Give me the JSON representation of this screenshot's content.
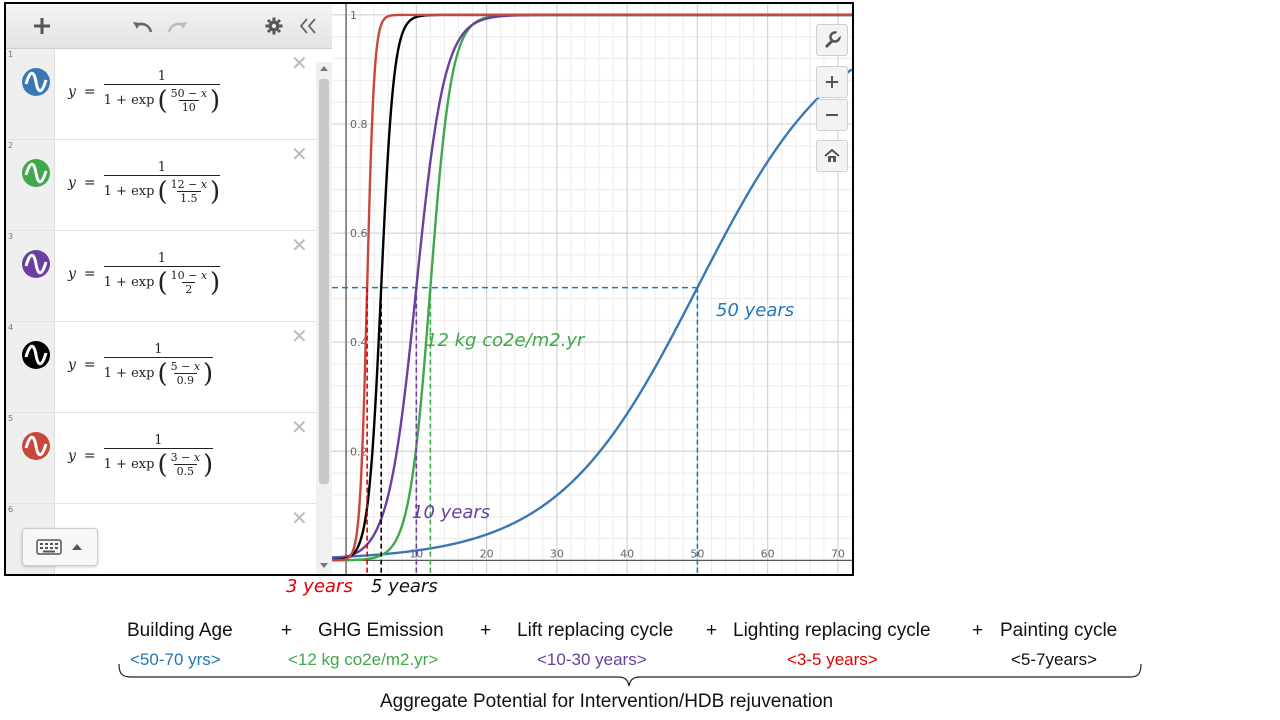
{
  "colors": {
    "blue": "#3a78b4",
    "green": "#3ea84a",
    "purple": "#6a3fa0",
    "black": "#000000",
    "red": "#c9473a",
    "annotation_red": "#e00000",
    "annotation_teal": "#2079b8"
  },
  "expressions": [
    {
      "index": "1",
      "color": "#3a78b4",
      "numerator": "1",
      "c": "50",
      "s": "10"
    },
    {
      "index": "2",
      "color": "#3ea84a",
      "numerator": "1",
      "c": "12",
      "s": "1.5"
    },
    {
      "index": "3",
      "color": "#6a3fa0",
      "numerator": "1",
      "c": "10",
      "s": "2"
    },
    {
      "index": "4",
      "color": "#000000",
      "numerator": "1",
      "c": "5",
      "s": "0.9"
    },
    {
      "index": "5",
      "color": "#c9473a",
      "numerator": "1",
      "c": "3",
      "s": "0.5"
    },
    {
      "index": "6"
    }
  ],
  "chart_data": {
    "type": "line",
    "xlim": [
      -2,
      72
    ],
    "ylim": [
      0,
      1
    ],
    "x_ticks": [
      "10",
      "20",
      "30",
      "40",
      "50",
      "60",
      "70"
    ],
    "y_ticks": [
      "0.2",
      "0.4",
      "0.6",
      "0.8",
      "1"
    ],
    "series": [
      {
        "color": "#3a78b4",
        "center": 50,
        "scale": 10
      },
      {
        "color": "#3ea84a",
        "center": 12,
        "scale": 1.5
      },
      {
        "color": "#6a3fa0",
        "center": 10,
        "scale": 2
      },
      {
        "color": "#000000",
        "center": 5,
        "scale": 0.9
      },
      {
        "color": "#c9473a",
        "center": 3,
        "scale": 0.5
      }
    ],
    "half_line_y": 0.5,
    "markers": [
      {
        "x": 3,
        "color": "#e00000"
      },
      {
        "x": 5,
        "color": "#000000"
      },
      {
        "x": 10,
        "color": "#6a3fa0"
      },
      {
        "x": 12,
        "color": "#3ea84a"
      },
      {
        "x": 50,
        "color": "#2079b8"
      }
    ],
    "annotations": {
      "fifty": "50 years",
      "twelve": "12 kg co2e/m2.yr",
      "ten": "10 years",
      "three": "3 years",
      "five": "5 years"
    }
  },
  "equation": {
    "terms": [
      "Building Age",
      "+",
      "GHG Emission",
      "+",
      "Lift replacing cycle",
      "+",
      "Lighting replacing cycle",
      "+",
      "Painting cycle"
    ],
    "ranges": [
      "<50-70 yrs>",
      "<12  kg co2e/m2.yr>",
      "<10-30 years>",
      "<3-5 years>",
      "<5-7years>"
    ],
    "caption": "Aggregate Potential for Intervention/HDB rejuvenation"
  }
}
